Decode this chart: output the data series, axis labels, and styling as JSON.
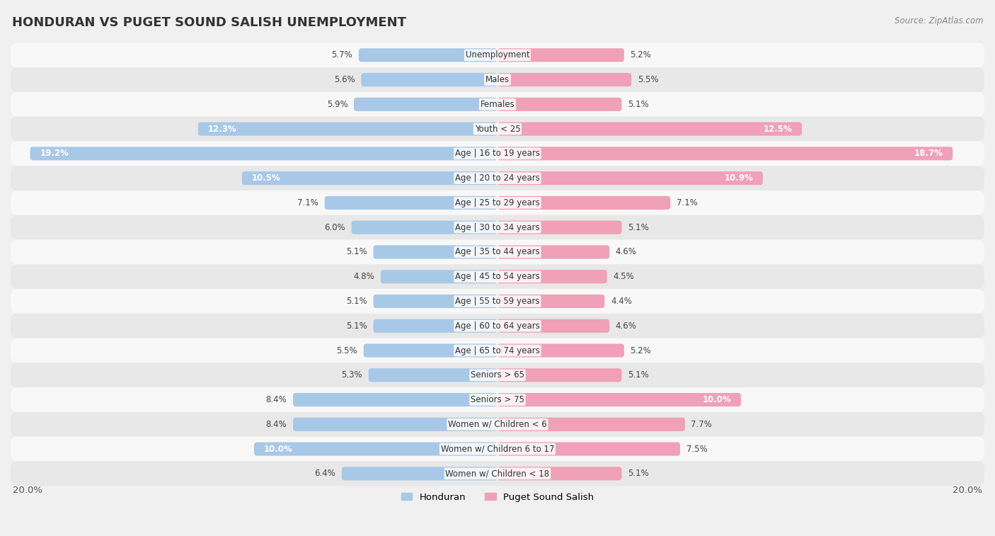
{
  "title": "HONDURAN VS PUGET SOUND SALISH UNEMPLOYMENT",
  "source": "Source: ZipAtlas.com",
  "categories": [
    "Unemployment",
    "Males",
    "Females",
    "Youth < 25",
    "Age | 16 to 19 years",
    "Age | 20 to 24 years",
    "Age | 25 to 29 years",
    "Age | 30 to 34 years",
    "Age | 35 to 44 years",
    "Age | 45 to 54 years",
    "Age | 55 to 59 years",
    "Age | 60 to 64 years",
    "Age | 65 to 74 years",
    "Seniors > 65",
    "Seniors > 75",
    "Women w/ Children < 6",
    "Women w/ Children 6 to 17",
    "Women w/ Children < 18"
  ],
  "honduran": [
    5.7,
    5.6,
    5.9,
    12.3,
    19.2,
    10.5,
    7.1,
    6.0,
    5.1,
    4.8,
    5.1,
    5.1,
    5.5,
    5.3,
    8.4,
    8.4,
    10.0,
    6.4
  ],
  "puget": [
    5.2,
    5.5,
    5.1,
    12.5,
    18.7,
    10.9,
    7.1,
    5.1,
    4.6,
    4.5,
    4.4,
    4.6,
    5.2,
    5.1,
    10.0,
    7.7,
    7.5,
    5.1
  ],
  "honduran_color": "#a8c8e8",
  "puget_color": "#f0a0b8",
  "max_val": 20.0,
  "bg_color": "#f0f0f0",
  "row_bg_light": "#f8f8f8",
  "row_bg_dark": "#e8e8e8",
  "legend_honduran": "Honduran",
  "legend_puget": "Puget Sound Salish",
  "label_inside_color": "white",
  "label_outside_color": "#444444",
  "inside_threshold": 10.0
}
